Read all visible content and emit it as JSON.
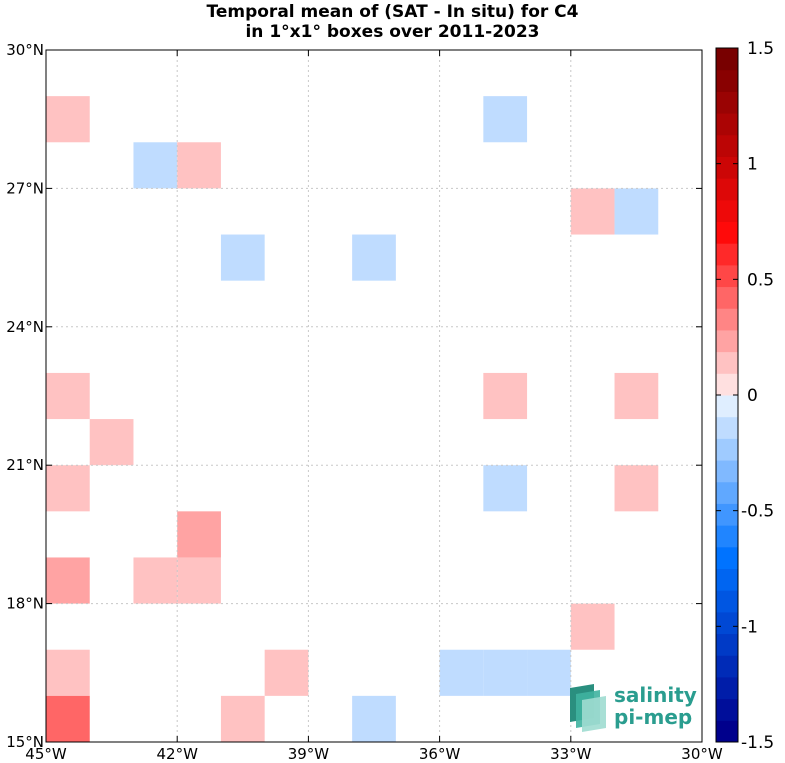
{
  "chart_data": {
    "type": "heatmap",
    "title": [
      "Temporal mean of (SAT - In situ) for C4",
      "in 1°x1° boxes over 2011-2023"
    ],
    "x_ticks": [
      "45°W",
      "42°W",
      "39°W",
      "36°W",
      "33°W",
      "30°W"
    ],
    "y_ticks": [
      "30°N",
      "27°N",
      "24°N",
      "21°N",
      "18°N",
      "15°N"
    ],
    "colorbar_ticks": [
      "1.5",
      "1",
      "0.5",
      "0",
      "-0.5",
      "-1",
      "-1.5"
    ],
    "colorbar_range": [
      -1.5,
      1.5
    ],
    "colorbar_steps": 32,
    "lon_range": [
      -45,
      -30
    ],
    "lat_range": [
      15,
      30
    ],
    "grid": true,
    "cells": [
      {
        "lon": -45,
        "lat": 28,
        "value": 0.1
      },
      {
        "lon": -35,
        "lat": 28,
        "value": -0.1
      },
      {
        "lon": -43,
        "lat": 27,
        "value": -0.1
      },
      {
        "lon": -42,
        "lat": 27,
        "value": 0.1
      },
      {
        "lon": -33,
        "lat": 26,
        "value": 0.1
      },
      {
        "lon": -32,
        "lat": 26,
        "value": -0.1
      },
      {
        "lon": -41,
        "lat": 25,
        "value": -0.1
      },
      {
        "lon": -38,
        "lat": 25,
        "value": -0.1
      },
      {
        "lon": -45,
        "lat": 22,
        "value": 0.1
      },
      {
        "lon": -35,
        "lat": 22,
        "value": 0.1
      },
      {
        "lon": -32,
        "lat": 22,
        "value": 0.1
      },
      {
        "lon": -44,
        "lat": 21,
        "value": 0.1
      },
      {
        "lon": -45,
        "lat": 20,
        "value": 0.1
      },
      {
        "lon": -35,
        "lat": 20,
        "value": -0.1
      },
      {
        "lon": -32,
        "lat": 20,
        "value": 0.1
      },
      {
        "lon": -42,
        "lat": 19,
        "value": 0.25
      },
      {
        "lon": -45,
        "lat": 18,
        "value": 0.25
      },
      {
        "lon": -43,
        "lat": 18,
        "value": 0.1
      },
      {
        "lon": -42,
        "lat": 18,
        "value": 0.1
      },
      {
        "lon": -33,
        "lat": 17,
        "value": 0.1
      },
      {
        "lon": -45,
        "lat": 16,
        "value": 0.1
      },
      {
        "lon": -40,
        "lat": 16,
        "value": 0.1
      },
      {
        "lon": -36,
        "lat": 16,
        "value": -0.1
      },
      {
        "lon": -35,
        "lat": 16,
        "value": -0.1
      },
      {
        "lon": -34,
        "lat": 16,
        "value": -0.1
      },
      {
        "lon": -45,
        "lat": 15,
        "value": 0.4
      },
      {
        "lon": -41,
        "lat": 15,
        "value": 0.1
      },
      {
        "lon": -38,
        "lat": 15,
        "value": -0.1
      }
    ]
  },
  "logo": {
    "line1": "salinity",
    "line2": "pi-mep"
  }
}
